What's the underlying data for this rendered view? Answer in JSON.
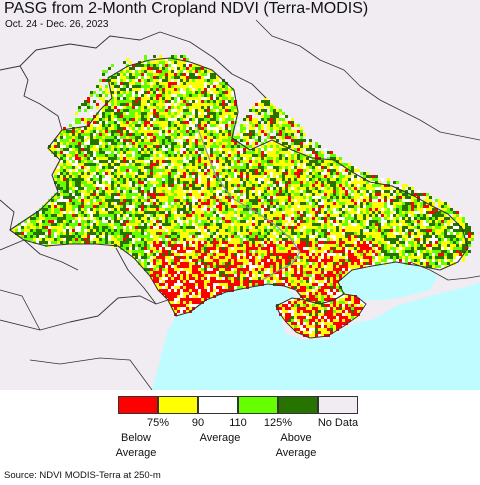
{
  "title": "PASG from 2-Month Cropland NDVI (Terra-MODIS)",
  "date_range": "Oct. 24 - Dec. 26, 2023",
  "source": "Source: NDVI MODIS-Terra at 250-m",
  "legend": {
    "categories": [
      {
        "key": "below",
        "color": "#ff0000"
      },
      {
        "key": "low",
        "color": "#ffff00"
      },
      {
        "key": "average",
        "color": "#ffffff"
      },
      {
        "key": "high",
        "color": "#66ff00"
      },
      {
        "key": "above",
        "color": "#267300"
      },
      {
        "key": "nodata",
        "color": "#f0ecf2"
      }
    ],
    "ticks": {
      "t75": "75%",
      "t90": "90",
      "t110": "110",
      "t125": "125%",
      "nodata": "No Data"
    },
    "groups": {
      "below_line1": "Below",
      "below_line2": "Average",
      "average": "Average",
      "above_line1": "Above",
      "above_line2": "Average"
    }
  },
  "map_colors": {
    "background_land": "#f0ecf2",
    "sea": "#bffcff",
    "border": "#333333"
  }
}
